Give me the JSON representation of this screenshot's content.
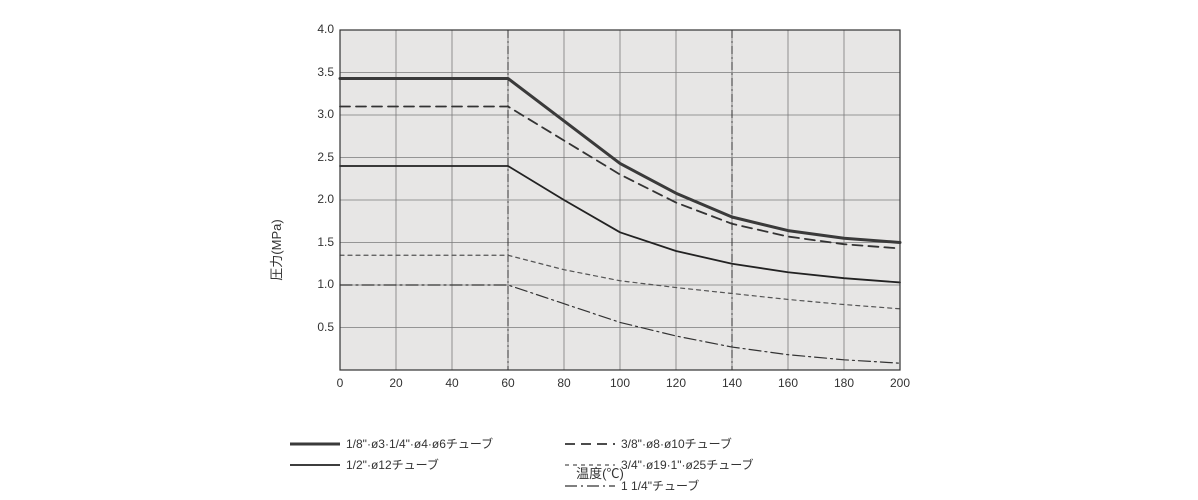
{
  "chart": {
    "type": "line",
    "title": "",
    "background_color": "#ffffff",
    "plot_background_color": "#e7e6e5",
    "grid_color": "#7a7a7a",
    "grid_line_width": 0.8,
    "axis_color": "#333333",
    "border_width": 1.2,
    "x": {
      "label": "温度(℃)",
      "min": 0,
      "max": 200,
      "ticks": [
        0,
        20,
        40,
        60,
        80,
        100,
        120,
        140,
        160,
        180,
        200
      ],
      "label_fontsize": 13,
      "tick_fontsize": 12,
      "guide_lines": [
        60,
        140
      ],
      "guide_dash": "8 3 2 3"
    },
    "y": {
      "label": "圧力(MPa)",
      "min": 0,
      "max": 4.0,
      "ticks": [
        0.5,
        1.0,
        1.5,
        2.0,
        2.5,
        3.0,
        3.5,
        4.0
      ],
      "label_fontsize": 13,
      "tick_fontsize": 12
    },
    "series": [
      {
        "name": "1/8\"·ø3·1/4\"·ø4·ø6チューブ",
        "color": "#3a3a3a",
        "line_width": 3.0,
        "dash": null,
        "points": [
          {
            "x": 0,
            "y": 3.43
          },
          {
            "x": 60,
            "y": 3.43
          },
          {
            "x": 80,
            "y": 2.93
          },
          {
            "x": 100,
            "y": 2.43
          },
          {
            "x": 120,
            "y": 2.08
          },
          {
            "x": 140,
            "y": 1.8
          },
          {
            "x": 160,
            "y": 1.64
          },
          {
            "x": 180,
            "y": 1.55
          },
          {
            "x": 200,
            "y": 1.5
          }
        ]
      },
      {
        "name": "3/8\"·ø8·ø10チューブ",
        "color": "#333333",
        "line_width": 1.8,
        "dash": "10 6",
        "points": [
          {
            "x": 0,
            "y": 3.1
          },
          {
            "x": 60,
            "y": 3.1
          },
          {
            "x": 80,
            "y": 2.7
          },
          {
            "x": 100,
            "y": 2.3
          },
          {
            "x": 120,
            "y": 1.97
          },
          {
            "x": 140,
            "y": 1.72
          },
          {
            "x": 160,
            "y": 1.57
          },
          {
            "x": 180,
            "y": 1.48
          },
          {
            "x": 200,
            "y": 1.43
          }
        ]
      },
      {
        "name": "1/2\"·ø12チューブ",
        "color": "#222222",
        "line_width": 1.8,
        "dash": null,
        "points": [
          {
            "x": 0,
            "y": 2.4
          },
          {
            "x": 60,
            "y": 2.4
          },
          {
            "x": 80,
            "y": 2.0
          },
          {
            "x": 100,
            "y": 1.62
          },
          {
            "x": 120,
            "y": 1.4
          },
          {
            "x": 140,
            "y": 1.25
          },
          {
            "x": 160,
            "y": 1.15
          },
          {
            "x": 180,
            "y": 1.08
          },
          {
            "x": 200,
            "y": 1.03
          }
        ]
      },
      {
        "name": "3/4\"·ø19·1\"·ø25チューブ",
        "color": "#555555",
        "line_width": 1.2,
        "dash": "4 4",
        "points": [
          {
            "x": 0,
            "y": 1.35
          },
          {
            "x": 60,
            "y": 1.35
          },
          {
            "x": 80,
            "y": 1.18
          },
          {
            "x": 100,
            "y": 1.05
          },
          {
            "x": 120,
            "y": 0.97
          },
          {
            "x": 140,
            "y": 0.9
          },
          {
            "x": 160,
            "y": 0.83
          },
          {
            "x": 180,
            "y": 0.77
          },
          {
            "x": 200,
            "y": 0.72
          }
        ]
      },
      {
        "name": "1 1/4\"チューブ",
        "color": "#333333",
        "line_width": 1.2,
        "dash": "12 4 2 4",
        "points": [
          {
            "x": 0,
            "y": 1.0
          },
          {
            "x": 60,
            "y": 1.0
          },
          {
            "x": 80,
            "y": 0.78
          },
          {
            "x": 100,
            "y": 0.56
          },
          {
            "x": 120,
            "y": 0.4
          },
          {
            "x": 140,
            "y": 0.27
          },
          {
            "x": 160,
            "y": 0.18
          },
          {
            "x": 180,
            "y": 0.12
          },
          {
            "x": 200,
            "y": 0.08
          }
        ]
      }
    ]
  },
  "legend": {
    "fontsize": 12,
    "line_length": 50,
    "rows": [
      [
        0,
        1
      ],
      [
        2,
        3
      ],
      [
        -1,
        4
      ]
    ]
  }
}
